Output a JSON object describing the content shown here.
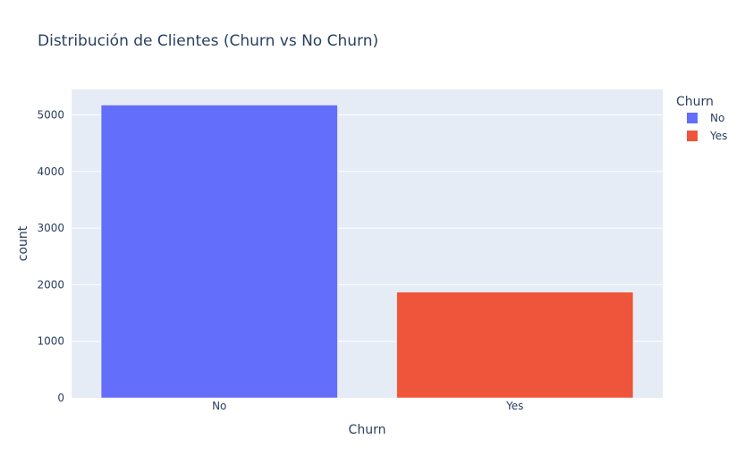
{
  "chart_data": {
    "type": "bar",
    "title": "Distribución de Clientes (Churn vs No Churn)",
    "xlabel": "Churn",
    "ylabel": "count",
    "categories": [
      "No",
      "Yes"
    ],
    "series": [
      {
        "name": "No",
        "values": [
          5174,
          null
        ],
        "color": "#636efa"
      },
      {
        "name": "Yes",
        "values": [
          null,
          1869
        ],
        "color": "#ef553b"
      }
    ],
    "ylim": [
      0,
      5450
    ],
    "yticks": [
      0,
      1000,
      2000,
      3000,
      4000,
      5000
    ],
    "grid": true,
    "legend": {
      "title": "Churn",
      "placement": "top-right",
      "entries": [
        "No",
        "Yes"
      ]
    },
    "plot_background": "#e5ecf6",
    "text_color": "#2a3f5f"
  }
}
